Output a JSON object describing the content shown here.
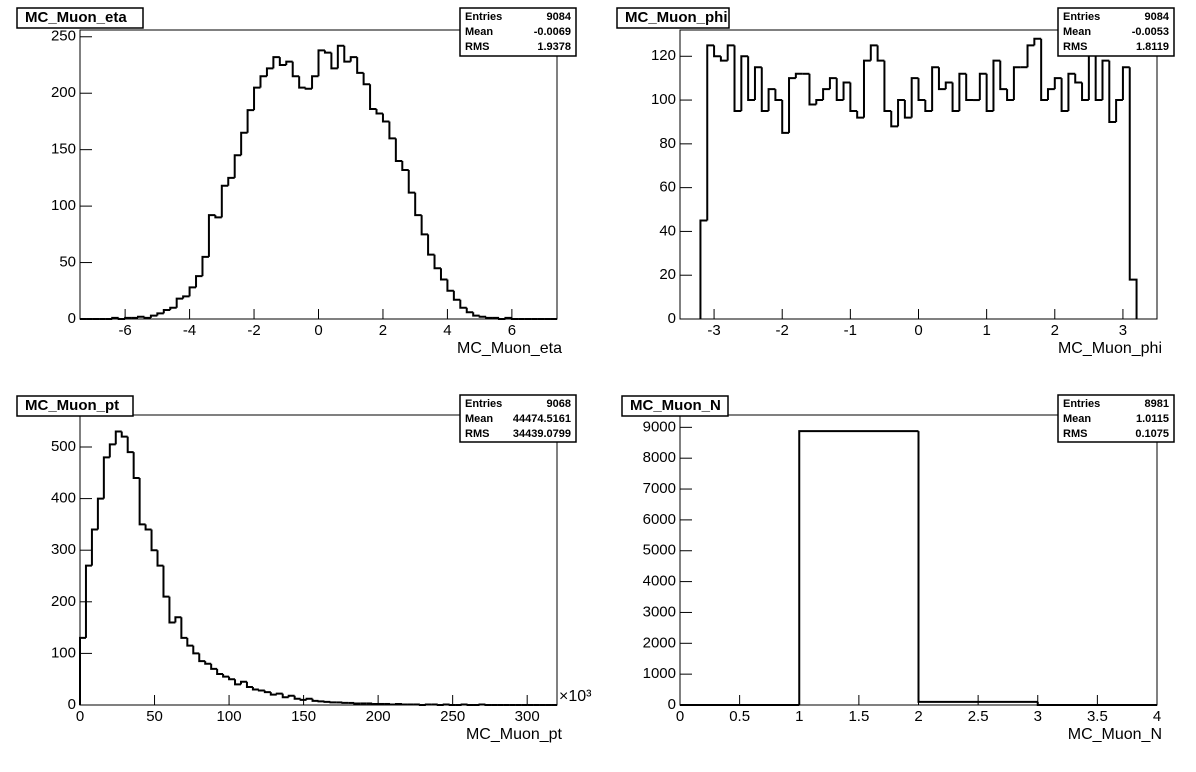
{
  "chart_data": [
    {
      "type": "histogram",
      "title": "MC_Muon_eta",
      "x_label": "MC_Muon_eta",
      "stats": [
        {
          "name": "Entries",
          "value": 9084
        },
        {
          "name": "Mean",
          "value": -0.0069
        },
        {
          "name": "RMS",
          "value": 1.9378
        }
      ],
      "bins": [
        -7.4,
        -7.2,
        -7.0,
        -6.8,
        -6.6,
        -6.4,
        -6.2,
        -6.0,
        -5.8,
        -5.6,
        -5.4,
        -5.2,
        -5.0,
        -4.8,
        -4.6,
        -4.4,
        -4.2,
        -4.0,
        -3.8,
        -3.6,
        -3.4,
        -3.2,
        -3.0,
        -2.8,
        -2.6,
        -2.4,
        -2.2,
        -2.0,
        -1.8,
        -1.6,
        -1.4,
        -1.2,
        -1.0,
        -0.8,
        -0.6,
        -0.4,
        -0.2,
        0.0,
        0.2,
        0.4,
        0.6,
        0.8,
        1.0,
        1.2,
        1.4,
        1.6,
        1.8,
        2.0,
        2.2,
        2.4,
        2.6,
        2.8,
        3.0,
        3.2,
        3.4,
        3.6,
        3.8,
        4.0,
        4.2,
        4.4,
        4.6,
        4.8,
        5.0,
        5.2,
        5.4,
        5.6,
        5.8,
        6.0,
        6.2,
        6.4,
        6.6,
        6.8,
        7.0,
        7.2,
        7.4
      ],
      "values": [
        0,
        0,
        0,
        0,
        0,
        1,
        0,
        1,
        1,
        2,
        1,
        3,
        5,
        8,
        10,
        18,
        20,
        28,
        38,
        55,
        92,
        90,
        118,
        125,
        145,
        165,
        185,
        205,
        215,
        222,
        232,
        225,
        228,
        215,
        205,
        204,
        215,
        238,
        236,
        222,
        242,
        228,
        232,
        218,
        208,
        186,
        182,
        175,
        160,
        140,
        132,
        112,
        92,
        75,
        57,
        45,
        35,
        25,
        17,
        10,
        6,
        3,
        2,
        1,
        1,
        0,
        1,
        0,
        0,
        0,
        0,
        0,
        0,
        0
      ],
      "color": "#000000",
      "xlim": [
        -7.4,
        7.4
      ],
      "xticks": [
        -6,
        -4,
        -2,
        0,
        2,
        4,
        6
      ],
      "ylim": [
        0,
        256
      ],
      "yticks": [
        0,
        50,
        100,
        150,
        200,
        250
      ]
    },
    {
      "type": "histogram",
      "title": "MC_Muon_phi",
      "x_label": "MC_Muon_phi",
      "stats": [
        {
          "name": "Entries",
          "value": 9084
        },
        {
          "name": "Mean",
          "value": -0.0053
        },
        {
          "name": "RMS",
          "value": 1.8119
        }
      ],
      "bins": [
        -3.2,
        -3.1,
        -3.0,
        -2.9,
        -2.8,
        -2.7,
        -2.6,
        -2.5,
        -2.4,
        -2.3,
        -2.2,
        -2.1,
        -2.0,
        -1.9,
        -1.8,
        -1.7,
        -1.6,
        -1.5,
        -1.4,
        -1.3,
        -1.2,
        -1.1,
        -1.0,
        -0.9,
        -0.8,
        -0.7,
        -0.6,
        -0.5,
        -0.4,
        -0.3,
        -0.2,
        -0.1,
        0.0,
        0.1,
        0.2,
        0.3,
        0.4,
        0.5,
        0.6,
        0.7,
        0.8,
        0.9,
        1.0,
        1.1,
        1.2,
        1.3,
        1.4,
        1.5,
        1.6,
        1.7,
        1.8,
        1.9,
        2.0,
        2.1,
        2.2,
        2.3,
        2.4,
        2.5,
        2.6,
        2.7,
        2.8,
        2.9,
        3.0,
        3.1,
        3.2
      ],
      "values": [
        45,
        125,
        120,
        118,
        125,
        95,
        120,
        100,
        115,
        95,
        105,
        100,
        85,
        110,
        112,
        112,
        98,
        100,
        105,
        110,
        100,
        108,
        95,
        92,
        118,
        125,
        118,
        95,
        88,
        100,
        92,
        110,
        100,
        95,
        115,
        105,
        108,
        95,
        112,
        100,
        100,
        112,
        95,
        118,
        105,
        100,
        115,
        115,
        125,
        128,
        100,
        105,
        110,
        95,
        112,
        108,
        100,
        125,
        100,
        118,
        90,
        100,
        115,
        18
      ],
      "color": "#000000",
      "xlim": [
        -3.5,
        3.5
      ],
      "xticks": [
        -3,
        -2,
        -1,
        0,
        1,
        2,
        3
      ],
      "ylim": [
        0,
        132
      ],
      "yticks": [
        0,
        20,
        40,
        60,
        80,
        100,
        120
      ]
    },
    {
      "type": "histogram",
      "title": "MC_Muon_pt",
      "x_label": "MC_Muon_pt",
      "x_exponent": "×10³",
      "stats": [
        {
          "name": "Entries",
          "value": 9068
        },
        {
          "name": "Mean",
          "value": 44474.5161
        },
        {
          "name": "RMS",
          "value": 34439.0799
        }
      ],
      "bins": [
        0,
        4,
        8,
        12,
        16,
        20,
        24,
        28,
        32,
        36,
        40,
        44,
        48,
        52,
        56,
        60,
        64,
        68,
        72,
        76,
        80,
        84,
        88,
        92,
        96,
        100,
        104,
        108,
        112,
        116,
        120,
        124,
        128,
        132,
        136,
        140,
        144,
        148,
        152,
        156,
        160,
        164,
        168,
        172,
        176,
        180,
        184,
        188,
        192,
        196,
        200,
        204,
        208,
        212,
        216,
        220,
        224,
        228,
        232,
        236,
        240,
        244,
        248,
        252,
        256,
        260,
        264,
        268,
        272,
        276,
        280,
        284,
        288,
        292,
        296,
        300,
        304,
        308,
        312,
        316,
        320
      ],
      "values": [
        130,
        270,
        340,
        400,
        480,
        505,
        530,
        520,
        490,
        440,
        350,
        340,
        300,
        270,
        210,
        160,
        170,
        130,
        115,
        100,
        85,
        80,
        70,
        60,
        55,
        50,
        40,
        45,
        35,
        30,
        28,
        25,
        20,
        22,
        15,
        18,
        12,
        10,
        12,
        8,
        7,
        6,
        5,
        5,
        4,
        4,
        3,
        3,
        3,
        2,
        2,
        2,
        1,
        2,
        1,
        1,
        1,
        0,
        1,
        1,
        0,
        1,
        0,
        0,
        1,
        0,
        0,
        1,
        0,
        0,
        0,
        0,
        0,
        0,
        0,
        0,
        0,
        0,
        0,
        0
      ],
      "color": "#000000",
      "xlim": [
        0,
        320
      ],
      "xticks": [
        0,
        50,
        100,
        150,
        200,
        250,
        300
      ],
      "ylim": [
        0,
        562
      ],
      "yticks": [
        0,
        100,
        200,
        300,
        400,
        500
      ]
    },
    {
      "type": "histogram",
      "title": "MC_Muon_N",
      "x_label": "MC_Muon_N",
      "stats": [
        {
          "name": "Entries",
          "value": 8981
        },
        {
          "name": "Mean",
          "value": 1.0115
        },
        {
          "name": "RMS",
          "value": 0.1075
        }
      ],
      "bins": [
        0,
        1,
        2,
        3,
        4
      ],
      "values": [
        0,
        8878,
        103,
        0
      ],
      "color": "#000000",
      "xlim": [
        0,
        4
      ],
      "xticks": [
        0,
        0.5,
        1,
        1.5,
        2,
        2.5,
        3,
        3.5,
        4
      ],
      "ylim": [
        0,
        9400
      ],
      "yticks": [
        0,
        1000,
        2000,
        3000,
        4000,
        5000,
        6000,
        7000,
        8000,
        9000
      ]
    }
  ]
}
